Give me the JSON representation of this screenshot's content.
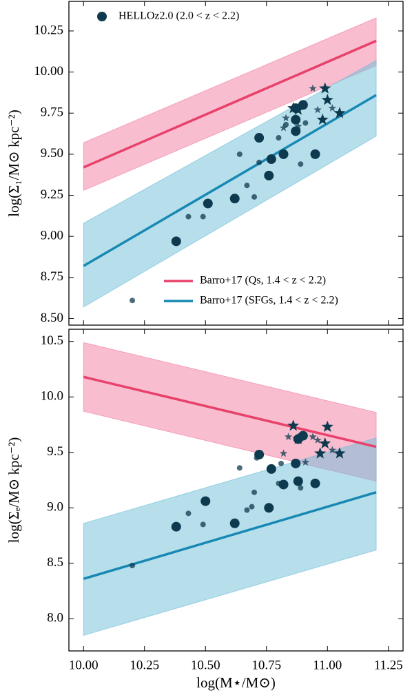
{
  "chart_data": [
    {
      "type": "scatter",
      "ylabel": "log(Σ₁/M⊙ kpc⁻²)",
      "xlim": [
        9.94,
        11.31
      ],
      "ylim": [
        8.46,
        10.43
      ],
      "xticks": [
        10.0,
        10.25,
        10.5,
        10.75,
        11.0,
        11.25
      ],
      "xtick_labels": false,
      "yticks": [
        8.75,
        {
          "value": 8.5,
          "label": "8.50"
        },
        {
          "value": 9.0,
          "label": "9.00"
        },
        9.25,
        {
          "value": 9.5,
          "label": "9.50"
        },
        9.75,
        {
          "value": 10.0,
          "label": "10.00"
        },
        10.25
      ],
      "series": [
        {
          "name": "Barro+17 (Qs, 1.4 < z < 2.2)",
          "type": "line",
          "color": "#e8416b",
          "band_color": "#f27b9f",
          "x": [
            10.0,
            11.2
          ],
          "y": [
            9.42,
            10.19
          ],
          "band_lower": [
            9.28,
            10.04
          ],
          "band_upper": [
            9.57,
            10.33
          ]
        },
        {
          "name": "Barro+17 (SFGs, 1.4 < z < 2.2)",
          "type": "line",
          "color": "#1788b3",
          "band_color": "#6dbdd8",
          "x": [
            10.0,
            11.2
          ],
          "y": [
            8.82,
            9.86
          ],
          "band_lower": [
            8.57,
            9.61
          ],
          "band_upper": [
            9.08,
            10.07
          ]
        },
        {
          "name": "HELLOz2.0 (2.0 < z < 2.2)",
          "type": "scatter",
          "color": "#0d3a4e",
          "x": [
            10.38,
            10.51,
            10.62,
            10.72,
            10.77,
            10.76,
            10.82,
            10.95,
            10.87,
            10.87,
            10.87,
            10.9,
            10.64,
            10.72,
            10.67,
            10.7,
            10.43,
            10.49,
            10.8,
            10.89,
            10.83,
            10.2,
            10.91,
            10.86,
            10.88,
            10.99,
            11.0,
            10.98,
            11.05,
            10.94,
            10.96,
            11.02,
            10.83,
            10.82,
            10.88
          ],
          "y": [
            8.97,
            9.2,
            9.23,
            9.6,
            9.47,
            9.37,
            9.5,
            9.5,
            9.64,
            9.71,
            9.78,
            9.8,
            9.5,
            9.45,
            9.31,
            9.24,
            9.12,
            9.12,
            9.6,
            9.44,
            9.68,
            8.61,
            9.69,
            9.78,
            9.77,
            9.9,
            9.83,
            9.71,
            9.75,
            9.9,
            9.77,
            9.78,
            9.72,
            9.66,
            9.67
          ],
          "marker": [
            "circle",
            "circle",
            "circle",
            "circle",
            "circle",
            "circle",
            "circle",
            "circle",
            "circle",
            "circle",
            "circle",
            "circle",
            "circle",
            "circle",
            "circle",
            "circle",
            "circle",
            "circle",
            "circle",
            "circle",
            "circle",
            "circle",
            "circle",
            "star",
            "star",
            "star",
            "star",
            "star",
            "star",
            "star",
            "star",
            "star",
            "star",
            "star",
            "star"
          ],
          "size": [
            "large",
            "large",
            "large",
            "large",
            "large",
            "large",
            "large",
            "large",
            "large",
            "large",
            "large",
            "large",
            "small",
            "small",
            "small",
            "small",
            "small",
            "small",
            "small",
            "small",
            "small",
            "small",
            "small",
            "large",
            "large",
            "large",
            "large",
            "large",
            "large",
            "small",
            "small",
            "small",
            "small",
            "small",
            "small"
          ]
        }
      ]
    },
    {
      "type": "scatter",
      "xlabel": "log(M⋆/M⊙)",
      "ylabel": "log(Σₑ/M⊙ kpc⁻²)",
      "xlim": [
        9.94,
        11.31
      ],
      "ylim": [
        7.71,
        10.61
      ],
      "xticks": [
        {
          "value": 10.0,
          "label": "10.00"
        },
        10.25,
        {
          "value": 10.5,
          "label": "10.50"
        },
        10.75,
        {
          "value": 11.0,
          "label": "11.00"
        },
        11.25
      ],
      "xtick_labels": true,
      "yticks": [
        {
          "value": 8.0,
          "label": "8.0"
        },
        8.5,
        {
          "value": 9.0,
          "label": "9.0"
        },
        9.5,
        {
          "value": 10.0,
          "label": "10.0"
        },
        10.5
      ],
      "series": [
        {
          "type": "line",
          "color": "#e8416b",
          "band_color": "#f27b9f",
          "x": [
            10.0,
            11.2
          ],
          "y": [
            10.18,
            9.55
          ],
          "band_lower": [
            9.87,
            9.24
          ],
          "band_upper": [
            10.49,
            9.86
          ]
        },
        {
          "type": "line",
          "color": "#1788b3",
          "band_color": "#6dbdd8",
          "x": [
            10.0,
            11.2
          ],
          "y": [
            8.36,
            9.14
          ],
          "band_lower": [
            7.85,
            8.62
          ],
          "band_upper": [
            8.86,
            9.63
          ]
        },
        {
          "type": "scatter",
          "color": "#0d3a4e",
          "x": [
            10.38,
            10.5,
            10.62,
            10.72,
            10.77,
            10.76,
            10.82,
            10.88,
            10.87,
            10.95,
            10.9,
            10.88,
            10.64,
            10.71,
            10.7,
            10.67,
            10.69,
            10.43,
            10.49,
            10.8,
            10.81,
            10.89,
            10.2,
            10.86,
            10.88,
            11.0,
            10.99,
            10.97,
            11.05,
            10.82,
            10.84,
            10.94,
            10.96,
            11.02,
            10.91
          ],
          "y": [
            8.83,
            9.06,
            8.86,
            9.48,
            9.35,
            9.0,
            9.21,
            9.24,
            9.4,
            9.22,
            9.65,
            9.62,
            9.36,
            9.45,
            9.14,
            8.98,
            9.01,
            8.95,
            8.85,
            9.22,
            9.4,
            9.18,
            8.48,
            9.74,
            9.62,
            9.73,
            9.58,
            9.49,
            9.49,
            9.49,
            9.64,
            9.64,
            9.61,
            9.52,
            9.41
          ],
          "marker": [
            "circle",
            "circle",
            "circle",
            "circle",
            "circle",
            "circle",
            "circle",
            "circle",
            "circle",
            "circle",
            "circle",
            "circle",
            "circle",
            "circle",
            "circle",
            "circle",
            "circle",
            "circle",
            "circle",
            "circle",
            "circle",
            "circle",
            "circle",
            "star",
            "star",
            "star",
            "star",
            "star",
            "star",
            "star",
            "star",
            "star",
            "star",
            "star",
            "star"
          ],
          "size": [
            "large",
            "large",
            "large",
            "large",
            "large",
            "large",
            "large",
            "large",
            "large",
            "large",
            "large",
            "large",
            "small",
            "small",
            "small",
            "small",
            "small",
            "small",
            "small",
            "small",
            "small",
            "small",
            "small",
            "large",
            "large",
            "large",
            "large",
            "large",
            "large",
            "small",
            "small",
            "small",
            "small",
            "small",
            "small"
          ]
        }
      ]
    }
  ]
}
